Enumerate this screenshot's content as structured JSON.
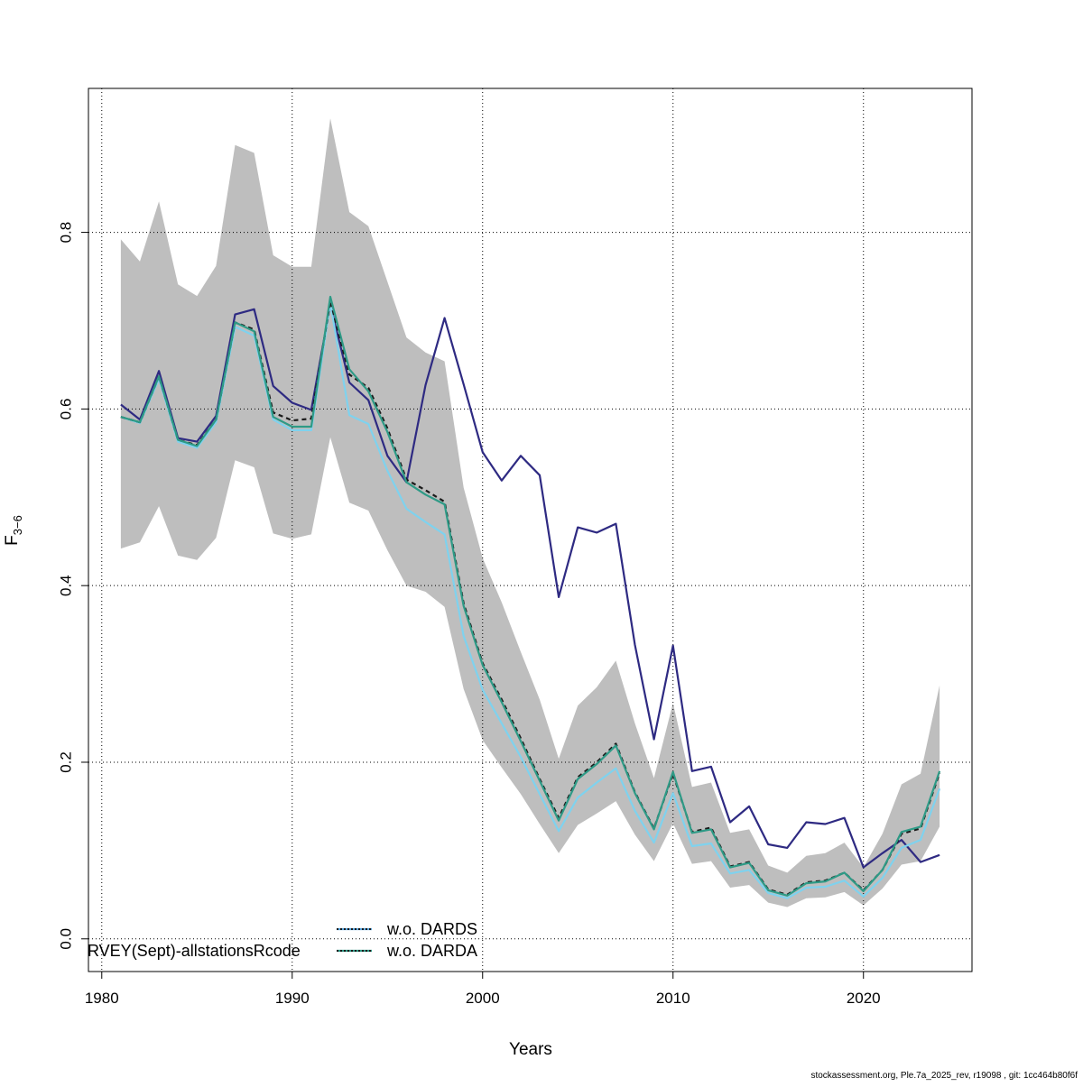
{
  "chart_data": {
    "type": "line",
    "xlabel": "Years",
    "ylabel_main": "F",
    "ylabel_sub": "3−6",
    "xlim": [
      1979.3,
      2025.7
    ],
    "ylim": [
      -0.037,
      0.963
    ],
    "x_ticks": [
      1980,
      1990,
      2000,
      2010,
      2020
    ],
    "x_tick_labels": [
      "1980",
      "1990",
      "2000",
      "2010",
      "2020"
    ],
    "y_ticks": [
      0.0,
      0.2,
      0.4,
      0.6,
      0.8
    ],
    "y_tick_labels": [
      "0.0",
      "0.2",
      "0.4",
      "0.6",
      "0.8"
    ],
    "grid": true,
    "legend_position": "bottom-left",
    "legend_entries": [
      {
        "label": "RVEY(Sept)-allstationsRcode",
        "color": "#2e2a82",
        "dash": "solid"
      },
      {
        "label": "w.o. DARDS",
        "color": "#1a1a1a",
        "dash": "dotted",
        "overlay": "#5aa7e0"
      },
      {
        "label": "w.o. DARDA",
        "color": "#1a1a1a",
        "dash": "dotted",
        "overlay": "#2e9a86"
      }
    ],
    "x": [
      1981,
      1982,
      1983,
      1984,
      1985,
      1986,
      1987,
      1988,
      1989,
      1990,
      1991,
      1992,
      1993,
      1994,
      1995,
      1996,
      1997,
      1998,
      1999,
      2000,
      2001,
      2002,
      2003,
      2004,
      2005,
      2006,
      2007,
      2008,
      2009,
      2010,
      2011,
      2012,
      2013,
      2014,
      2015,
      2016,
      2017,
      2018,
      2019,
      2020,
      2021,
      2022,
      2023,
      2024
    ],
    "band": {
      "color": "#bebebe",
      "upper": [
        0.792,
        0.767,
        0.835,
        0.741,
        0.728,
        0.762,
        0.899,
        0.89,
        0.774,
        0.761,
        0.761,
        0.929,
        0.823,
        0.807,
        0.744,
        0.681,
        0.664,
        0.654,
        0.511,
        0.431,
        0.381,
        0.325,
        0.271,
        0.204,
        0.264,
        0.285,
        0.315,
        0.244,
        0.182,
        0.267,
        0.172,
        0.177,
        0.12,
        0.124,
        0.083,
        0.075,
        0.094,
        0.097,
        0.109,
        0.081,
        0.119,
        0.175,
        0.187,
        0.287
      ],
      "lower": [
        0.442,
        0.449,
        0.49,
        0.434,
        0.429,
        0.454,
        0.542,
        0.534,
        0.459,
        0.453,
        0.458,
        0.568,
        0.494,
        0.485,
        0.44,
        0.4,
        0.393,
        0.376,
        0.283,
        0.225,
        0.194,
        0.164,
        0.13,
        0.097,
        0.129,
        0.142,
        0.156,
        0.118,
        0.088,
        0.131,
        0.085,
        0.088,
        0.058,
        0.061,
        0.041,
        0.036,
        0.046,
        0.047,
        0.053,
        0.038,
        0.057,
        0.084,
        0.088,
        0.127
      ]
    },
    "series": [
      {
        "color": "#2e2a82",
        "width": 2.2,
        "dash": "",
        "values": [
          0.605,
          0.588,
          0.643,
          0.567,
          0.563,
          0.592,
          0.707,
          0.713,
          0.626,
          0.607,
          0.599,
          0.718,
          0.63,
          0.61,
          0.547,
          0.517,
          0.627,
          0.703,
          0.628,
          0.551,
          0.519,
          0.547,
          0.525,
          0.387,
          0.466,
          0.46,
          0.47,
          0.333,
          0.226,
          0.332,
          0.19,
          0.195,
          0.132,
          0.15,
          0.107,
          0.103,
          0.132,
          0.13,
          0.137,
          0.081,
          0.097,
          0.112,
          0.087,
          0.095
        ]
      },
      {
        "color": "#7fd2ee",
        "width": 2.2,
        "dash": "",
        "values": [
          0.591,
          0.584,
          0.634,
          0.563,
          0.556,
          0.585,
          0.693,
          0.683,
          0.588,
          0.576,
          0.576,
          0.72,
          0.593,
          0.583,
          0.53,
          0.487,
          0.472,
          0.458,
          0.343,
          0.282,
          0.244,
          0.206,
          0.164,
          0.122,
          0.16,
          0.177,
          0.193,
          0.145,
          0.109,
          0.165,
          0.105,
          0.108,
          0.074,
          0.078,
          0.052,
          0.046,
          0.058,
          0.059,
          0.066,
          0.048,
          0.069,
          0.103,
          0.112,
          0.17
        ]
      },
      {
        "color": "#1a1a1a",
        "width": 2.2,
        "dash": "5,4",
        "values": [
          0.591,
          0.585,
          0.637,
          0.565,
          0.559,
          0.588,
          0.698,
          0.69,
          0.596,
          0.587,
          0.589,
          0.722,
          0.639,
          0.624,
          0.578,
          0.52,
          0.508,
          0.495,
          0.38,
          0.312,
          0.271,
          0.227,
          0.181,
          0.137,
          0.183,
          0.2,
          0.221,
          0.166,
          0.125,
          0.187,
          0.121,
          0.126,
          0.082,
          0.087,
          0.056,
          0.05,
          0.064,
          0.066,
          0.075,
          0.055,
          0.078,
          0.119,
          0.125,
          0.188
        ]
      },
      {
        "color": "#2e9a86",
        "width": 2.2,
        "dash": "",
        "values": [
          0.591,
          0.585,
          0.637,
          0.565,
          0.558,
          0.588,
          0.698,
          0.688,
          0.591,
          0.58,
          0.58,
          0.727,
          0.645,
          0.62,
          0.574,
          0.517,
          0.503,
          0.492,
          0.377,
          0.31,
          0.268,
          0.224,
          0.179,
          0.134,
          0.181,
          0.198,
          0.219,
          0.165,
          0.124,
          0.189,
          0.12,
          0.124,
          0.081,
          0.086,
          0.055,
          0.049,
          0.063,
          0.065,
          0.075,
          0.054,
          0.078,
          0.121,
          0.127,
          0.19
        ]
      }
    ]
  },
  "footer": "stockassessment.org, Ple.7a_2025_rev, r19098 , git: 1cc464b80f6f"
}
